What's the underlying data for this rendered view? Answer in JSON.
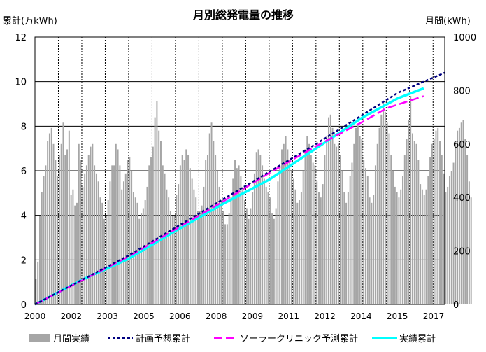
{
  "chart_data": {
    "type": "bar+line",
    "title": "月別総発電量の推移",
    "y_left_label": "累計(万kWh)",
    "y_right_label": "月間(kWh)",
    "y_left_range": [
      0,
      12
    ],
    "y_left_ticks": [
      "0",
      "2",
      "4",
      "6",
      "8",
      "10",
      "12"
    ],
    "y_right_range": [
      0,
      1000
    ],
    "y_right_ticks": [
      "0",
      "200",
      "400",
      "600",
      "800",
      "1000"
    ],
    "x_range_years": [
      2000.0,
      2017.5
    ],
    "x_tick_labels": [
      "2000",
      "2002",
      "2003",
      "2005",
      "2006",
      "2008",
      "2009",
      "2011",
      "2012",
      "2014",
      "2015",
      "2017"
    ],
    "grid": true,
    "legend_position": "bottom",
    "legend": [
      "月間実績",
      "計画予想累計",
      "ソーラークリニック予測累計",
      "実績累計"
    ],
    "colors": {
      "monthly_bars": "#a6a6a6",
      "plan": "#000080",
      "solar_clinic": "#ff00ff",
      "actual": "#00ffff"
    },
    "monthly_kwh": [
      95,
      160,
      330,
      420,
      480,
      520,
      610,
      640,
      660,
      600,
      540,
      480,
      560,
      600,
      680,
      560,
      580,
      650,
      410,
      430,
      370,
      380,
      600,
      540,
      440,
      490,
      520,
      560,
      590,
      600,
      520,
      490,
      460,
      400,
      380,
      320,
      330,
      390,
      460,
      520,
      520,
      600,
      580,
      520,
      430,
      460,
      490,
      540,
      550,
      500,
      420,
      400,
      380,
      320,
      340,
      360,
      390,
      440,
      520,
      550,
      590,
      700,
      760,
      650,
      610,
      520,
      490,
      430,
      400,
      350,
      330,
      330,
      410,
      450,
      520,
      560,
      540,
      580,
      560,
      510,
      470,
      430,
      400,
      350,
      350,
      370,
      440,
      540,
      560,
      640,
      680,
      610,
      560,
      500,
      440,
      390,
      350,
      300,
      300,
      340,
      400,
      470,
      540,
      510,
      520,
      480,
      440,
      390,
      360,
      320,
      360,
      420,
      490,
      570,
      580,
      560,
      520,
      470,
      440,
      420,
      400,
      340,
      320,
      360,
      460,
      520,
      580,
      600,
      630,
      580,
      540,
      500,
      470,
      430,
      380,
      390,
      420,
      500,
      580,
      630,
      600,
      560,
      530,
      520,
      460,
      420,
      400,
      450,
      560,
      630,
      700,
      710,
      660,
      600,
      590,
      600,
      560,
      500,
      420,
      380,
      420,
      480,
      530,
      600,
      660,
      670,
      630,
      620,
      540,
      510,
      480,
      400,
      380,
      410,
      520,
      600,
      660,
      710,
      760,
      720,
      680,
      640,
      560,
      500,
      440,
      420,
      400,
      430,
      480,
      560,
      620,
      690,
      780,
      640,
      610,
      600,
      540,
      450,
      430,
      410,
      430,
      480,
      550,
      600,
      620,
      650,
      660,
      610,
      560,
      490,
      420,
      440,
      480,
      500,
      530,
      610,
      650,
      660,
      680,
      690,
      620,
      560,
      460,
      400
    ],
    "plan_cumulative": [
      [
        2000.0,
        0
      ],
      [
        2004.0,
        2.2
      ],
      [
        2008.0,
        4.7
      ],
      [
        2012.0,
        7.2
      ],
      [
        2015.5,
        9.5
      ],
      [
        2017.5,
        10.4
      ]
    ],
    "solar_clinic_cumulative": [
      [
        2000.0,
        0
      ],
      [
        2004.0,
        2.15
      ],
      [
        2008.0,
        4.6
      ],
      [
        2010.0,
        5.9
      ],
      [
        2012.0,
        7.1
      ],
      [
        2014.0,
        8.2
      ],
      [
        2015.0,
        8.8
      ],
      [
        2016.6,
        9.35
      ]
    ],
    "actual_cumulative": [
      [
        2000.0,
        0
      ],
      [
        2002.0,
        1.1
      ],
      [
        2004.0,
        2.05
      ],
      [
        2006.0,
        3.3
      ],
      [
        2008.0,
        4.5
      ],
      [
        2010.0,
        5.6
      ],
      [
        2012.0,
        7.0
      ],
      [
        2014.0,
        8.4
      ],
      [
        2015.5,
        9.25
      ],
      [
        2016.6,
        9.7
      ]
    ]
  }
}
